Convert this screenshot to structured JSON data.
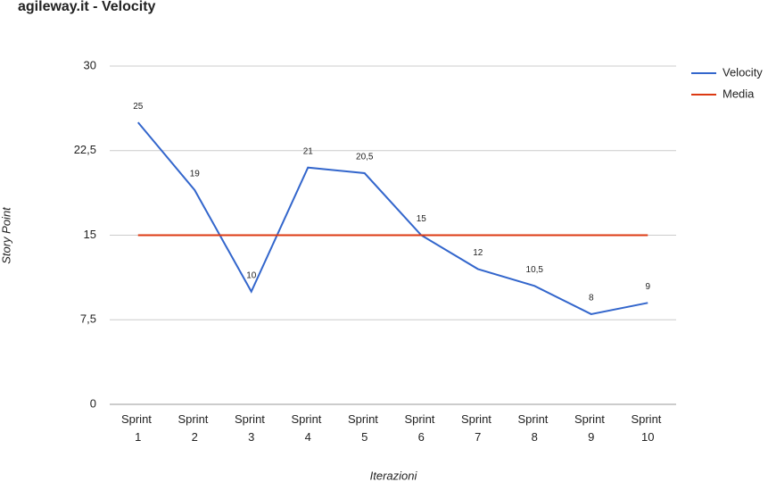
{
  "chart_data": {
    "type": "line",
    "title": "agileway.it - Velocity",
    "x_label": "Iterazioni",
    "y_label": "Story Point",
    "categories": [
      "Sprint 1",
      "Sprint 2",
      "Sprint 3",
      "Sprint 4",
      "Sprint 5",
      "Sprint 6",
      "Sprint 7",
      "Sprint 8",
      "Sprint 9",
      "Sprint 10"
    ],
    "series": [
      {
        "name": "Velocity",
        "color": "#3366cc",
        "values": [
          25,
          19,
          10,
          21,
          20.5,
          15,
          12,
          10.5,
          8,
          9
        ],
        "value_labels": [
          "25",
          "19",
          "10",
          "21",
          "20,5",
          "15",
          "12",
          "10,5",
          "8",
          "9"
        ]
      },
      {
        "name": "Media",
        "color": "#dc3912",
        "values": [
          15,
          15,
          15,
          15,
          15,
          15,
          15,
          15,
          15,
          15
        ]
      }
    ],
    "ylim": [
      0,
      30
    ],
    "yticks": [
      0,
      {
        "value": 7.5,
        "label": "7,5"
      },
      15,
      {
        "value": 22.5,
        "label": "22,5"
      },
      30
    ],
    "grid": true,
    "legend": "right"
  }
}
